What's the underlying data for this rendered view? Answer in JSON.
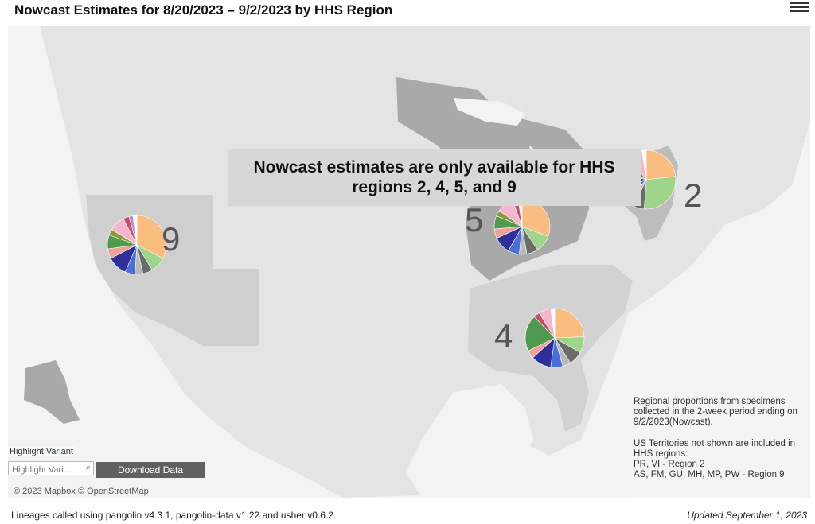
{
  "header": {
    "title": "Nowcast Estimates for 8/20/2023 – 9/2/2023 by HHS Region",
    "menu_icon": "hamburger-menu-icon"
  },
  "map": {
    "banner": "Nowcast estimates are only available for HHS regions 2, 4, 5, and 9",
    "regions": [
      {
        "label": "9",
        "slices": [
          {
            "color": "#f9bd7f",
            "value": 30
          },
          {
            "color": "#9fd48b",
            "value": 8
          },
          {
            "color": "#6b6b6b",
            "value": 5
          },
          {
            "color": "#b9b9b9",
            "value": 4
          },
          {
            "color": "#4a6fd8",
            "value": 5
          },
          {
            "color": "#2f2f9a",
            "value": 10
          },
          {
            "color": "#f0a09a",
            "value": 5
          },
          {
            "color": "#4f9a4f",
            "value": 7
          },
          {
            "color": "#8a9a3a",
            "value": 3
          },
          {
            "color": "#f4b6cf",
            "value": 8
          },
          {
            "color": "#c94c6b",
            "value": 3
          },
          {
            "color": "#b88ad0",
            "value": 2
          },
          {
            "color": "#ffffff",
            "value": 2
          }
        ]
      },
      {
        "label": "5",
        "slices": [
          {
            "color": "#f9bd7f",
            "value": 28
          },
          {
            "color": "#9fd48b",
            "value": 9
          },
          {
            "color": "#6b6b6b",
            "value": 6
          },
          {
            "color": "#b9b9b9",
            "value": 4
          },
          {
            "color": "#4a6fd8",
            "value": 6
          },
          {
            "color": "#2f2f9a",
            "value": 9
          },
          {
            "color": "#f0a09a",
            "value": 5
          },
          {
            "color": "#4f9a4f",
            "value": 7
          },
          {
            "color": "#8a9a3a",
            "value": 3
          },
          {
            "color": "#f4b6cf",
            "value": 9
          },
          {
            "color": "#c94c6b",
            "value": 3
          },
          {
            "color": "#ffffff",
            "value": 2
          }
        ]
      },
      {
        "label": "2",
        "slices": [
          {
            "color": "#f9bd7f",
            "value": 20
          },
          {
            "color": "#9fd48b",
            "value": 24
          },
          {
            "color": "#6b6b6b",
            "value": 5
          },
          {
            "color": "#b9b9b9",
            "value": 4
          },
          {
            "color": "#4a6fd8",
            "value": 6
          },
          {
            "color": "#2f2f9a",
            "value": 9
          },
          {
            "color": "#f0a09a",
            "value": 4
          },
          {
            "color": "#4f9a4f",
            "value": 5
          },
          {
            "color": "#f4b6cf",
            "value": 7
          },
          {
            "color": "#ffffff",
            "value": 2
          }
        ]
      },
      {
        "label": "4",
        "slices": [
          {
            "color": "#f9bd7f",
            "value": 22
          },
          {
            "color": "#9fd48b",
            "value": 8
          },
          {
            "color": "#6b6b6b",
            "value": 7
          },
          {
            "color": "#b9b9b9",
            "value": 4
          },
          {
            "color": "#4a6fd8",
            "value": 6
          },
          {
            "color": "#2f2f9a",
            "value": 10
          },
          {
            "color": "#f0a09a",
            "value": 4
          },
          {
            "color": "#4f9a4f",
            "value": 18
          },
          {
            "color": "#c94c6b",
            "value": 3
          },
          {
            "color": "#f4b6cf",
            "value": 6
          },
          {
            "color": "#ffffff",
            "value": 2
          }
        ]
      }
    ]
  },
  "legend_note": {
    "line1": "Regional proportions from specimens collected in the 2-week period ending on 9/2/2023(Nowcast).",
    "line2": "US Territories not shown are included in HHS regions:",
    "line3": "PR, VI - Region 2",
    "line4": "AS, FM, GU, MH, MP, PW - Region 9"
  },
  "controls": {
    "highlight_label": "Highlight Variant",
    "highlight_placeholder": "Highlight Vari...",
    "download_label": "Download Data"
  },
  "attribution": "© 2023 Mapbox  © OpenStreetMap",
  "footer": {
    "left": "Lineages called using pangolin v4.3.1, pangolin-data v1.22 and usher v0.6.2.",
    "right": "Updated September 1, 2023"
  }
}
